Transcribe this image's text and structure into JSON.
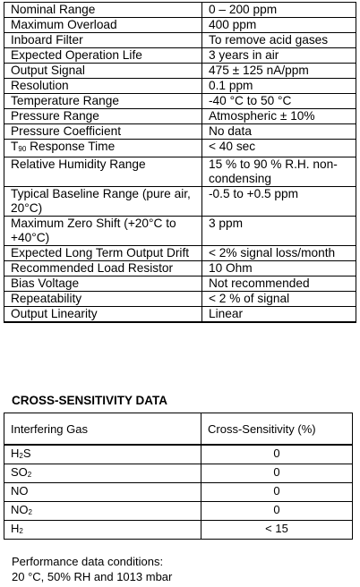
{
  "specs": [
    {
      "label": "Nominal Range",
      "value": "0 – 200 ppm"
    },
    {
      "label": "Maximum Overload",
      "value": "400 ppm"
    },
    {
      "label": "Inboard Filter",
      "value": "To remove acid gases"
    },
    {
      "label": "Expected Operation Life",
      "value": "3 years in air"
    },
    {
      "label": "Output Signal",
      "value": "475 ± 125 nA/ppm"
    },
    {
      "label": "Resolution",
      "value": "0.1 ppm"
    },
    {
      "label": "Temperature Range",
      "value": "-40 °C to 50 °C"
    },
    {
      "label": "Pressure Range",
      "value": "Atmospheric ± 10%"
    },
    {
      "label": "Pressure Coefficient",
      "value": "No data"
    },
    {
      "label_prefix": "T",
      "label_sub": "90",
      "label": " Response Time",
      "value": "< 40 sec"
    },
    {
      "label": "Relative Humidity Range",
      "value": "15 % to 90 % R.H. non-condensing"
    },
    {
      "label": "Typical Baseline Range (pure air, 20°C)",
      "value": "-0.5 to +0.5 ppm"
    },
    {
      "label": "Maximum Zero Shift (+20°C to +40°C)",
      "value": "3 ppm"
    },
    {
      "label": "Expected Long Term Output Drift",
      "value": "< 2% signal loss/month"
    },
    {
      "label": "Recommended Load Resistor",
      "value": "10 Ohm"
    },
    {
      "label": "Bias Voltage",
      "value": "Not recommended"
    },
    {
      "label": "Repeatability",
      "value": "< 2 % of signal"
    },
    {
      "label": "Output Linearity",
      "value": "Linear"
    }
  ],
  "cross_sensitivity": {
    "title": "CROSS-SENSITIVITY DATA",
    "header": {
      "gas": "Interfering Gas",
      "value": "Cross-Sensitivity (%)"
    },
    "rows": [
      {
        "gas_main": "H",
        "gas_sub": "2",
        "gas_tail": "S",
        "value": "0"
      },
      {
        "gas_main": "SO",
        "gas_sub": "2",
        "gas_tail": "",
        "value": "0"
      },
      {
        "gas_main": "NO",
        "gas_sub": "",
        "gas_tail": "",
        "value": "0"
      },
      {
        "gas_main": "NO",
        "gas_sub": "2",
        "gas_tail": "",
        "value": "0"
      },
      {
        "gas_main": "H",
        "gas_sub": "2",
        "gas_tail": "",
        "value": "< 15"
      }
    ]
  },
  "footer": {
    "line1": "Performance data conditions:",
    "line2": "20 °C, 50% RH and 1013 mbar"
  }
}
